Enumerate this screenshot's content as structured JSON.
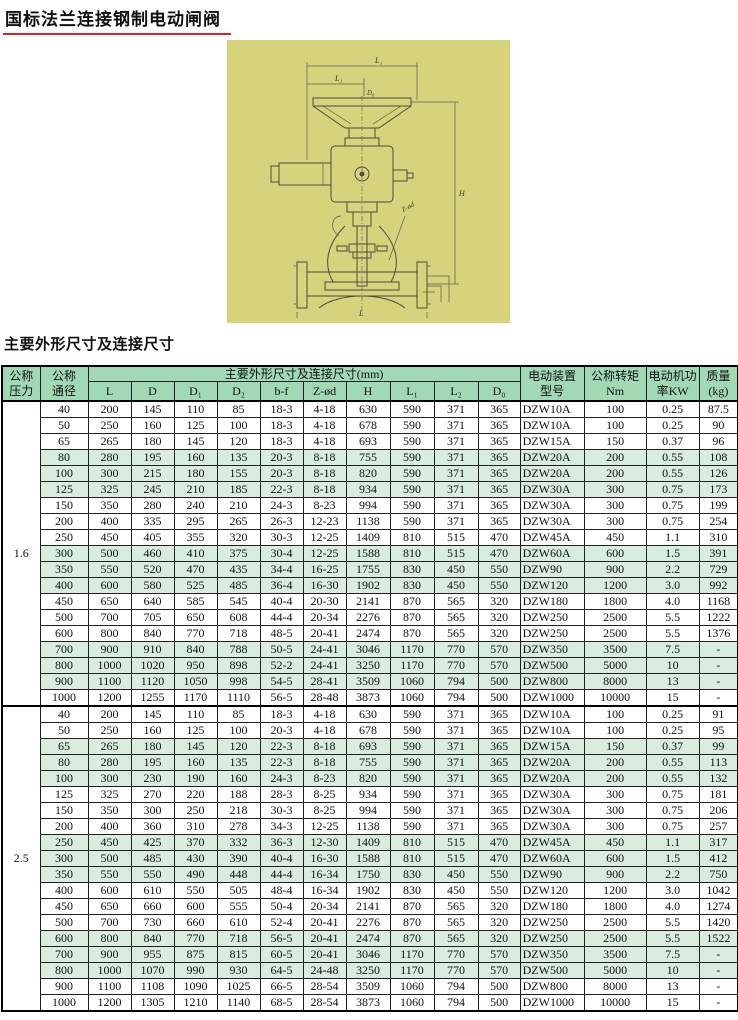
{
  "page": {
    "title": "国标法兰连接钢制电动闸阀",
    "section_heading": "主要外形尺寸及连接尺寸"
  },
  "colors": {
    "accent_red": "#d8232a",
    "box_yellow": "#d7d27c",
    "header_green": "#a0d9b4",
    "row_green": "#d8eddd"
  },
  "drawing": {
    "labels": {
      "l1": "L₁",
      "l2": "L₂",
      "d0": "D₀",
      "h": "H",
      "z_od": "Z-ød",
      "l": "L"
    }
  },
  "table": {
    "header": {
      "pressure": "公称\n压力",
      "diameter": "公称\n通径",
      "dims_span": "主要外形尺寸及连接尺寸(mm)",
      "dim_cols": [
        "L",
        "D",
        "D₁",
        "D₂",
        "b-f",
        "Z-ød",
        "H",
        "L₁",
        "L₂",
        "D₀"
      ],
      "actuator": "电动装置\n型号",
      "torque": "公称转矩\nNm",
      "power": "电动机功\n率KW",
      "mass": "质量\n(kg)"
    },
    "groups": [
      {
        "pressure": "1.6",
        "rows": [
          [
            "40",
            "200",
            "145",
            "110",
            "85",
            "18-3",
            "4-18",
            "630",
            "590",
            "371",
            "365",
            "DZW10A",
            "100",
            "0.25",
            "87.5"
          ],
          [
            "50",
            "250",
            "160",
            "125",
            "100",
            "18-3",
            "4-18",
            "678",
            "590",
            "371",
            "365",
            "DZW10A",
            "100",
            "0.25",
            "90"
          ],
          [
            "65",
            "265",
            "180",
            "145",
            "120",
            "18-3",
            "4-18",
            "693",
            "590",
            "371",
            "365",
            "DZW15A",
            "150",
            "0.37",
            "96"
          ],
          [
            "80",
            "280",
            "195",
            "160",
            "135",
            "20-3",
            "8-18",
            "755",
            "590",
            "371",
            "365",
            "DZW20A",
            "200",
            "0.55",
            "108"
          ],
          [
            "100",
            "300",
            "215",
            "180",
            "155",
            "20-3",
            "8-18",
            "820",
            "590",
            "371",
            "365",
            "DZW20A",
            "200",
            "0.55",
            "126"
          ],
          [
            "125",
            "325",
            "245",
            "210",
            "185",
            "22-3",
            "8-18",
            "934",
            "590",
            "371",
            "365",
            "DZW30A",
            "300",
            "0.75",
            "173"
          ],
          [
            "150",
            "350",
            "280",
            "240",
            "210",
            "24-3",
            "8-23",
            "994",
            "590",
            "371",
            "365",
            "DZW30A",
            "300",
            "0.75",
            "199"
          ],
          [
            "200",
            "400",
            "335",
            "295",
            "265",
            "26-3",
            "12-23",
            "1138",
            "590",
            "371",
            "365",
            "DZW30A",
            "300",
            "0.75",
            "254"
          ],
          [
            "250",
            "450",
            "405",
            "355",
            "320",
            "30-3",
            "12-25",
            "1409",
            "810",
            "515",
            "470",
            "DZW45A",
            "450",
            "1.1",
            "310"
          ],
          [
            "300",
            "500",
            "460",
            "410",
            "375",
            "30-4",
            "12-25",
            "1588",
            "810",
            "515",
            "470",
            "DZW60A",
            "600",
            "1.5",
            "391"
          ],
          [
            "350",
            "550",
            "520",
            "470",
            "435",
            "34-4",
            "16-25",
            "1755",
            "830",
            "450",
            "550",
            "DZW90",
            "900",
            "2.2",
            "729"
          ],
          [
            "400",
            "600",
            "580",
            "525",
            "485",
            "36-4",
            "16-30",
            "1902",
            "830",
            "450",
            "550",
            "DZW120",
            "1200",
            "3.0",
            "992"
          ],
          [
            "450",
            "650",
            "640",
            "585",
            "545",
            "40-4",
            "20-30",
            "2141",
            "870",
            "565",
            "320",
            "DZW180",
            "1800",
            "4.0",
            "1168"
          ],
          [
            "500",
            "700",
            "705",
            "650",
            "608",
            "44-4",
            "20-34",
            "2276",
            "870",
            "565",
            "320",
            "DZW250",
            "2500",
            "5.5",
            "1222"
          ],
          [
            "600",
            "800",
            "840",
            "770",
            "718",
            "48-5",
            "20-41",
            "2474",
            "870",
            "565",
            "320",
            "DZW250",
            "2500",
            "5.5",
            "1376"
          ],
          [
            "700",
            "900",
            "910",
            "840",
            "788",
            "50-5",
            "24-41",
            "3046",
            "1170",
            "770",
            "570",
            "DZW350",
            "3500",
            "7.5",
            "-"
          ],
          [
            "800",
            "1000",
            "1020",
            "950",
            "898",
            "52-2",
            "24-41",
            "3250",
            "1170",
            "770",
            "570",
            "DZW500",
            "5000",
            "10",
            "-"
          ],
          [
            "900",
            "1100",
            "1120",
            "1050",
            "998",
            "54-5",
            "28-41",
            "3509",
            "1060",
            "794",
            "500",
            "DZW800",
            "8000",
            "13",
            "-"
          ],
          [
            "1000",
            "1200",
            "1255",
            "1170",
            "1110",
            "56-5",
            "28-48",
            "3873",
            "1060",
            "794",
            "500",
            "DZW1000",
            "10000",
            "15",
            "-"
          ]
        ]
      },
      {
        "pressure": "2.5",
        "rows": [
          [
            "40",
            "200",
            "145",
            "110",
            "85",
            "18-3",
            "4-18",
            "630",
            "590",
            "371",
            "365",
            "DZW10A",
            "100",
            "0.25",
            "91"
          ],
          [
            "50",
            "250",
            "160",
            "125",
            "100",
            "20-3",
            "4-18",
            "678",
            "590",
            "371",
            "365",
            "DZW10A",
            "100",
            "0.25",
            "95"
          ],
          [
            "65",
            "265",
            "180",
            "145",
            "120",
            "22-3",
            "8-18",
            "693",
            "590",
            "371",
            "365",
            "DZW15A",
            "150",
            "0.37",
            "99"
          ],
          [
            "80",
            "280",
            "195",
            "160",
            "135",
            "22-3",
            "8-18",
            "755",
            "590",
            "371",
            "365",
            "DZW20A",
            "200",
            "0.55",
            "113"
          ],
          [
            "100",
            "300",
            "230",
            "190",
            "160",
            "24-3",
            "8-23",
            "820",
            "590",
            "371",
            "365",
            "DZW20A",
            "200",
            "0.55",
            "132"
          ],
          [
            "125",
            "325",
            "270",
            "220",
            "188",
            "28-3",
            "8-25",
            "934",
            "590",
            "371",
            "365",
            "DZW30A",
            "300",
            "0.75",
            "181"
          ],
          [
            "150",
            "350",
            "300",
            "250",
            "218",
            "30-3",
            "8-25",
            "994",
            "590",
            "371",
            "365",
            "DZW30A",
            "300",
            "0.75",
            "206"
          ],
          [
            "200",
            "400",
            "360",
            "310",
            "278",
            "34-3",
            "12-25",
            "1138",
            "590",
            "371",
            "365",
            "DZW30A",
            "300",
            "0.75",
            "257"
          ],
          [
            "250",
            "450",
            "425",
            "370",
            "332",
            "36-3",
            "12-30",
            "1409",
            "810",
            "515",
            "470",
            "DZW45A",
            "450",
            "1.1",
            "317"
          ],
          [
            "300",
            "500",
            "485",
            "430",
            "390",
            "40-4",
            "16-30",
            "1588",
            "810",
            "515",
            "470",
            "DZW60A",
            "600",
            "1.5",
            "412"
          ],
          [
            "350",
            "550",
            "550",
            "490",
            "448",
            "44-4",
            "16-34",
            "1750",
            "830",
            "450",
            "550",
            "DZW90",
            "900",
            "2.2",
            "750"
          ],
          [
            "400",
            "600",
            "610",
            "550",
            "505",
            "48-4",
            "16-34",
            "1902",
            "830",
            "450",
            "550",
            "DZW120",
            "1200",
            "3.0",
            "1042"
          ],
          [
            "450",
            "650",
            "660",
            "600",
            "555",
            "50-4",
            "20-34",
            "2141",
            "870",
            "565",
            "320",
            "DZW180",
            "1800",
            "4.0",
            "1274"
          ],
          [
            "500",
            "700",
            "730",
            "660",
            "610",
            "52-4",
            "20-41",
            "2276",
            "870",
            "565",
            "320",
            "DZW250",
            "2500",
            "5.5",
            "1420"
          ],
          [
            "600",
            "800",
            "840",
            "770",
            "718",
            "56-5",
            "20-41",
            "2474",
            "870",
            "565",
            "320",
            "DZW250",
            "2500",
            "5.5",
            "1522"
          ],
          [
            "700",
            "900",
            "955",
            "875",
            "815",
            "60-5",
            "20-41",
            "3046",
            "1170",
            "770",
            "570",
            "DZW350",
            "3500",
            "7.5",
            "-"
          ],
          [
            "800",
            "1000",
            "1070",
            "990",
            "930",
            "64-5",
            "24-48",
            "3250",
            "1170",
            "770",
            "570",
            "DZW500",
            "5000",
            "10",
            "-"
          ],
          [
            "900",
            "1100",
            "1108",
            "1090",
            "1025",
            "66-5",
            "28-54",
            "3509",
            "1060",
            "794",
            "500",
            "DZW800",
            "8000",
            "13",
            "-"
          ],
          [
            "1000",
            "1200",
            "1305",
            "1210",
            "1140",
            "68-5",
            "28-54",
            "3873",
            "1060",
            "794",
            "500",
            "DZW1000",
            "10000",
            "15",
            "-"
          ]
        ]
      }
    ]
  }
}
